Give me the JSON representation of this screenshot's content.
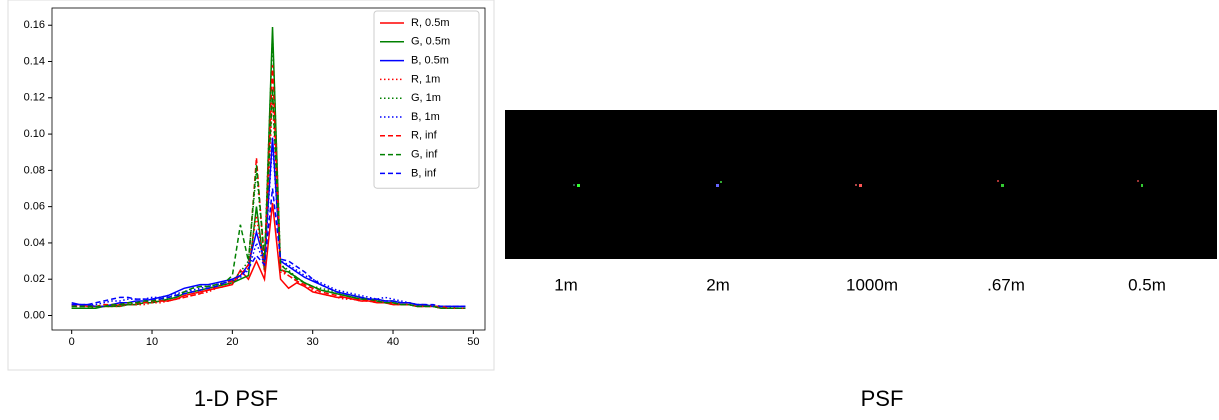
{
  "chart_data": {
    "type": "line",
    "x": [
      0,
      1,
      2,
      3,
      4,
      5,
      6,
      7,
      8,
      9,
      10,
      11,
      12,
      13,
      14,
      15,
      16,
      17,
      18,
      19,
      20,
      21,
      22,
      23,
      24,
      25,
      26,
      27,
      28,
      29,
      30,
      31,
      32,
      33,
      34,
      35,
      36,
      37,
      38,
      39,
      40,
      41,
      42,
      43,
      44,
      45,
      46,
      47,
      48,
      49
    ],
    "xlim": [
      -2.45,
      51.45
    ],
    "xticks": [
      0,
      10,
      20,
      30,
      40,
      50
    ],
    "ylim": [
      -0.008,
      0.1695
    ],
    "yticks": [
      {
        "value": 0,
        "label": "0.00"
      },
      {
        "value": 0.02,
        "label": "0.02"
      },
      {
        "value": 0.04,
        "label": "0.04"
      },
      {
        "value": 0.06,
        "label": "0.06"
      },
      {
        "value": 0.08,
        "label": "0.08"
      },
      {
        "value": 0.1,
        "label": "0.10"
      },
      {
        "value": 0.12,
        "label": "0.12"
      },
      {
        "value": 0.14,
        "label": "0.14"
      },
      {
        "value": 0.16,
        "label": "0.16"
      }
    ],
    "legend": "upper right",
    "series": [
      {
        "name": "R, 0.5m",
        "color": "#ff0000",
        "linestyle": "solid",
        "values": [
          0.006,
          0.006,
          0.005,
          0.005,
          0.005,
          0.005,
          0.006,
          0.006,
          0.006,
          0.007,
          0.007,
          0.008,
          0.008,
          0.009,
          0.011,
          0.012,
          0.013,
          0.014,
          0.015,
          0.016,
          0.017,
          0.025,
          0.02,
          0.03,
          0.02,
          0.062,
          0.02,
          0.015,
          0.018,
          0.016,
          0.013,
          0.012,
          0.011,
          0.01,
          0.01,
          0.009,
          0.008,
          0.008,
          0.007,
          0.007,
          0.006,
          0.006,
          0.006,
          0.005,
          0.005,
          0.005,
          0.004,
          0.004,
          0.004,
          0.004
        ]
      },
      {
        "name": "G, 0.5m",
        "color": "#008000",
        "linestyle": "solid",
        "values": [
          0.004,
          0.004,
          0.004,
          0.004,
          0.005,
          0.005,
          0.005,
          0.006,
          0.006,
          0.007,
          0.007,
          0.008,
          0.009,
          0.01,
          0.012,
          0.013,
          0.014,
          0.015,
          0.016,
          0.017,
          0.018,
          0.02,
          0.022,
          0.06,
          0.025,
          0.159,
          0.025,
          0.024,
          0.021,
          0.018,
          0.016,
          0.014,
          0.013,
          0.012,
          0.011,
          0.01,
          0.009,
          0.009,
          0.008,
          0.007,
          0.007,
          0.006,
          0.006,
          0.005,
          0.005,
          0.005,
          0.004,
          0.004,
          0.004,
          0.004
        ]
      },
      {
        "name": "B, 0.5m",
        "color": "#0000ff",
        "linestyle": "solid",
        "values": [
          0.007,
          0.006,
          0.006,
          0.005,
          0.005,
          0.006,
          0.007,
          0.007,
          0.008,
          0.008,
          0.009,
          0.01,
          0.011,
          0.013,
          0.015,
          0.016,
          0.017,
          0.017,
          0.018,
          0.019,
          0.02,
          0.022,
          0.028,
          0.046,
          0.03,
          0.098,
          0.03,
          0.027,
          0.024,
          0.021,
          0.019,
          0.017,
          0.015,
          0.013,
          0.012,
          0.011,
          0.01,
          0.009,
          0.009,
          0.008,
          0.008,
          0.007,
          0.007,
          0.006,
          0.006,
          0.005,
          0.005,
          0.005,
          0.005,
          0.005
        ]
      },
      {
        "name": "R, 1m",
        "color": "#ff0000",
        "linestyle": "dotted",
        "values": [
          0.005,
          0.005,
          0.005,
          0.005,
          0.005,
          0.005,
          0.005,
          0.006,
          0.006,
          0.006,
          0.007,
          0.007,
          0.008,
          0.009,
          0.01,
          0.011,
          0.012,
          0.013,
          0.015,
          0.016,
          0.018,
          0.022,
          0.026,
          0.055,
          0.024,
          0.12,
          0.024,
          0.022,
          0.019,
          0.016,
          0.014,
          0.012,
          0.011,
          0.01,
          0.009,
          0.009,
          0.008,
          0.008,
          0.007,
          0.007,
          0.006,
          0.006,
          0.006,
          0.005,
          0.005,
          0.005,
          0.004,
          0.004,
          0.004,
          0.004
        ]
      },
      {
        "name": "G, 1m",
        "color": "#008000",
        "linestyle": "dotted",
        "values": [
          0.004,
          0.004,
          0.004,
          0.005,
          0.005,
          0.005,
          0.006,
          0.006,
          0.007,
          0.007,
          0.008,
          0.009,
          0.01,
          0.011,
          0.013,
          0.015,
          0.016,
          0.016,
          0.017,
          0.018,
          0.019,
          0.024,
          0.03,
          0.08,
          0.03,
          0.155,
          0.028,
          0.025,
          0.021,
          0.018,
          0.016,
          0.015,
          0.014,
          0.013,
          0.012,
          0.011,
          0.01,
          0.009,
          0.009,
          0.008,
          0.008,
          0.007,
          0.007,
          0.006,
          0.006,
          0.005,
          0.005,
          0.005,
          0.004,
          0.004
        ]
      },
      {
        "name": "B, 1m",
        "color": "#0000ff",
        "linestyle": "dotted",
        "values": [
          0.006,
          0.006,
          0.006,
          0.006,
          0.007,
          0.008,
          0.008,
          0.009,
          0.009,
          0.009,
          0.01,
          0.01,
          0.011,
          0.012,
          0.013,
          0.014,
          0.015,
          0.016,
          0.017,
          0.018,
          0.019,
          0.021,
          0.025,
          0.04,
          0.028,
          0.095,
          0.03,
          0.028,
          0.025,
          0.022,
          0.02,
          0.018,
          0.016,
          0.014,
          0.013,
          0.012,
          0.011,
          0.01,
          0.009,
          0.01,
          0.009,
          0.008,
          0.007,
          0.006,
          0.006,
          0.005,
          0.005,
          0.005,
          0.005,
          0.005
        ]
      },
      {
        "name": "R, inf",
        "color": "#ff0000",
        "linestyle": "dashed",
        "values": [
          0.006,
          0.005,
          0.005,
          0.005,
          0.006,
          0.006,
          0.006,
          0.007,
          0.007,
          0.007,
          0.008,
          0.008,
          0.008,
          0.009,
          0.01,
          0.011,
          0.012,
          0.014,
          0.016,
          0.018,
          0.019,
          0.022,
          0.028,
          0.087,
          0.028,
          0.138,
          0.026,
          0.022,
          0.019,
          0.017,
          0.015,
          0.013,
          0.012,
          0.011,
          0.01,
          0.009,
          0.009,
          0.008,
          0.008,
          0.007,
          0.007,
          0.006,
          0.006,
          0.005,
          0.005,
          0.005,
          0.005,
          0.004,
          0.004,
          0.004
        ]
      },
      {
        "name": "G, inf",
        "color": "#008000",
        "linestyle": "dashed",
        "values": [
          0.005,
          0.005,
          0.005,
          0.005,
          0.005,
          0.006,
          0.006,
          0.007,
          0.007,
          0.008,
          0.008,
          0.009,
          0.01,
          0.011,
          0.013,
          0.015,
          0.016,
          0.016,
          0.017,
          0.018,
          0.022,
          0.05,
          0.03,
          0.083,
          0.032,
          0.125,
          0.028,
          0.024,
          0.02,
          0.018,
          0.016,
          0.014,
          0.013,
          0.012,
          0.011,
          0.01,
          0.009,
          0.009,
          0.008,
          0.007,
          0.007,
          0.006,
          0.006,
          0.005,
          0.005,
          0.005,
          0.004,
          0.004,
          0.004,
          0.004
        ]
      },
      {
        "name": "B, inf",
        "color": "#0000ff",
        "linestyle": "dashed",
        "values": [
          0.006,
          0.006,
          0.006,
          0.007,
          0.008,
          0.009,
          0.01,
          0.01,
          0.009,
          0.009,
          0.009,
          0.009,
          0.01,
          0.011,
          0.012,
          0.013,
          0.014,
          0.015,
          0.016,
          0.018,
          0.02,
          0.022,
          0.026,
          0.033,
          0.028,
          0.07,
          0.031,
          0.03,
          0.027,
          0.024,
          0.02,
          0.017,
          0.015,
          0.013,
          0.012,
          0.011,
          0.01,
          0.009,
          0.009,
          0.008,
          0.008,
          0.007,
          0.007,
          0.006,
          0.006,
          0.006,
          0.005,
          0.005,
          0.005,
          0.005
        ]
      }
    ]
  },
  "captions": [
    "1-D PSF",
    "PSF"
  ],
  "psf_labels": [
    "1m",
    "2m",
    "1000m",
    ".67m",
    "0.5m"
  ]
}
